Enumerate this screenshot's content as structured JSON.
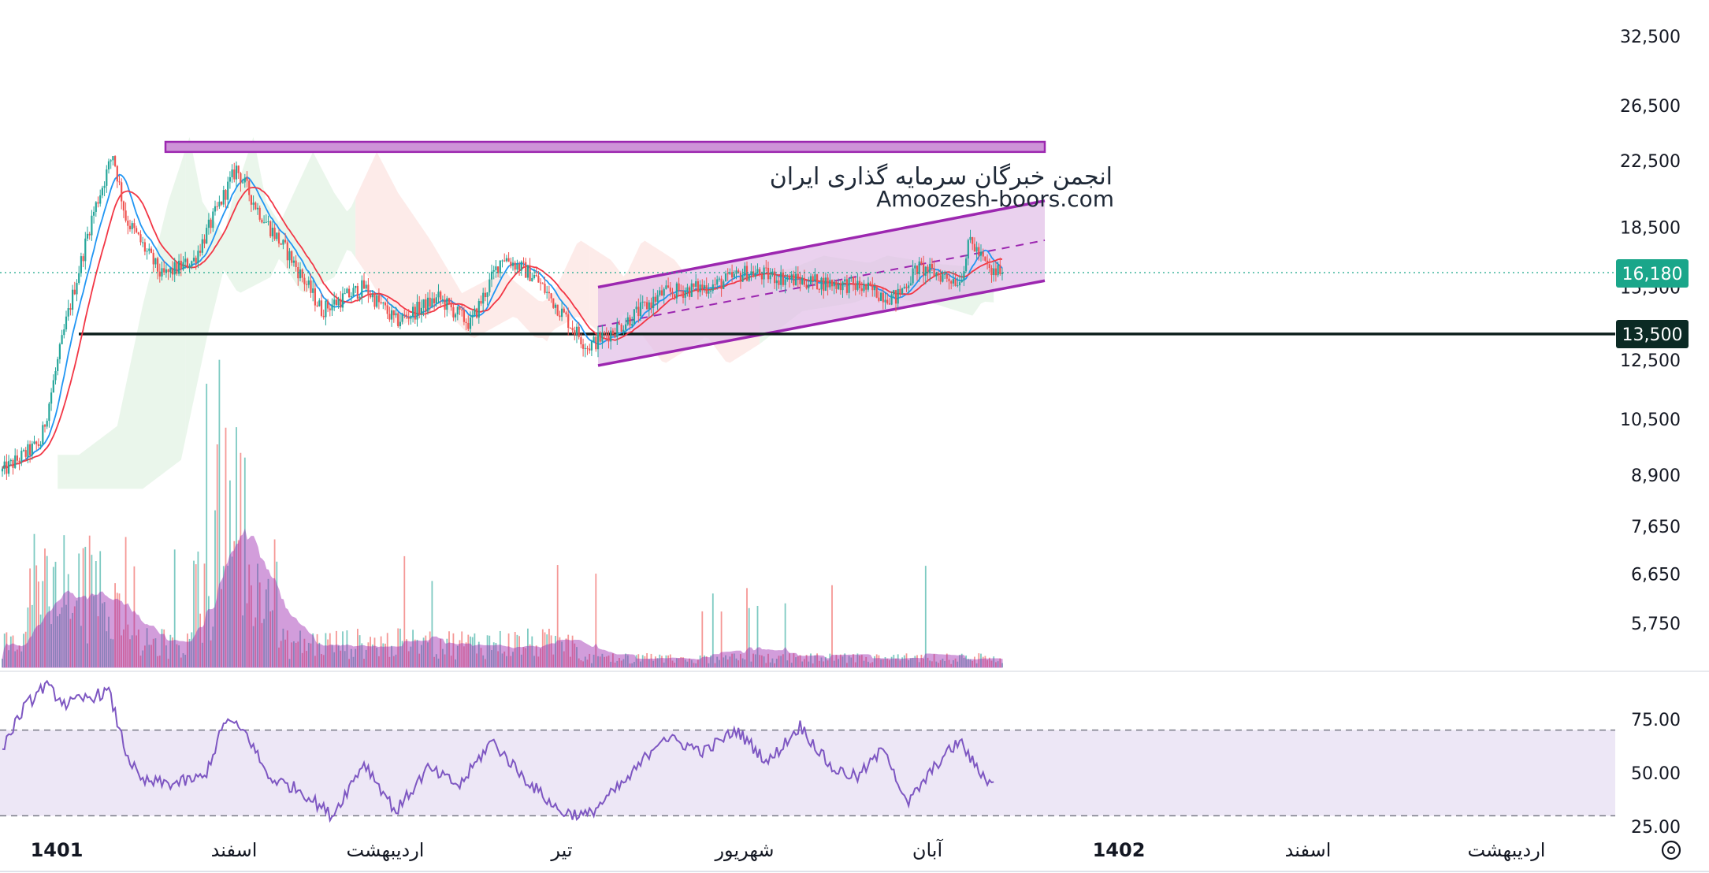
{
  "watermark": {
    "line1": "انجمن خبرگان سرمایه گذاری ایران",
    "line2": "Amoozesh-boors.com"
  },
  "colors": {
    "up": "#26a69a",
    "down": "#ef5350",
    "ma_fast": "#2196f3",
    "ma_slow": "#f23645",
    "channel": "#9c27b0",
    "channel_fill": "#e1bee7",
    "support": "#0d1f1c",
    "last_price_badge": "#1aa68a",
    "support_badge": "#0b2a24",
    "rsi": "#7e57c2",
    "rsi_band": "#ede7f6",
    "cloud_green": "#e8f5e9",
    "cloud_red": "#fde9e7"
  },
  "chart_data": [
    {
      "type": "candlestick",
      "price_axis": {
        "scale": "log",
        "ticks": [
          "32,500",
          "26,500",
          "22,500",
          "18,500",
          "15,500",
          "12,500",
          "10,500",
          "8,900",
          "7,650",
          "6,650",
          "5,750"
        ],
        "tick_values": [
          32500,
          26500,
          22500,
          18500,
          15500,
          12500,
          10500,
          8900,
          7650,
          6650,
          5750
        ]
      },
      "time_axis": {
        "labels": [
          "1401",
          "اسفند",
          "اردیبهشت",
          "تیر",
          "شهریور",
          "آبان",
          "1402",
          "اسفند",
          "اردیبهشت"
        ],
        "bold_labels": [
          "1401",
          "1402"
        ]
      },
      "last_price": {
        "value": 16180,
        "label": "16,180"
      },
      "support": {
        "value": 13500,
        "label": "13,500"
      },
      "resistance_zone": {
        "low": 23100,
        "high": 23800
      },
      "channel": {
        "upper": [
          {
            "bar": 280,
            "price": 15500
          },
          {
            "bar": 490,
            "price": 20000
          }
        ],
        "lower": [
          {
            "bar": 280,
            "price": 12300
          },
          {
            "bar": 490,
            "price": 15800
          }
        ],
        "mid": [
          {
            "bar": 280,
            "price": 13800
          },
          {
            "bar": 490,
            "price": 17800
          }
        ]
      },
      "price_path": [
        [
          0,
          9000
        ],
        [
          18,
          9800
        ],
        [
          30,
          14000
        ],
        [
          42,
          19000
        ],
        [
          52,
          23000
        ],
        [
          58,
          19000
        ],
        [
          75,
          16000
        ],
        [
          90,
          16800
        ],
        [
          110,
          22000
        ],
        [
          120,
          19500
        ],
        [
          135,
          17000
        ],
        [
          150,
          14500
        ],
        [
          170,
          15500
        ],
        [
          185,
          14000
        ],
        [
          205,
          15000
        ],
        [
          220,
          13900
        ],
        [
          235,
          17000
        ],
        [
          250,
          16000
        ],
        [
          262,
          14500
        ],
        [
          275,
          13000
        ],
        [
          290,
          13800
        ],
        [
          310,
          15200
        ],
        [
          335,
          15600
        ],
        [
          350,
          16200
        ],
        [
          375,
          15800
        ],
        [
          400,
          15600
        ],
        [
          420,
          15000
        ],
        [
          430,
          16400
        ],
        [
          450,
          15800
        ],
        [
          455,
          17800
        ],
        [
          465,
          16100
        ],
        [
          470,
          16400
        ]
      ],
      "volume": {
        "note": "volume histogram with moving-average area"
      },
      "indicators": [
        "moving averages",
        "ichimoku cloud",
        "volume"
      ]
    },
    {
      "type": "line",
      "name": "RSI",
      "ticks": [
        "75.00",
        "50.00",
        "25.00"
      ],
      "tick_values": [
        75,
        50,
        25
      ],
      "band": [
        30,
        70
      ],
      "path": [
        [
          0,
          62
        ],
        [
          10,
          80
        ],
        [
          20,
          91
        ],
        [
          30,
          82
        ],
        [
          40,
          85
        ],
        [
          50,
          88
        ],
        [
          58,
          60
        ],
        [
          65,
          46
        ],
        [
          80,
          45
        ],
        [
          95,
          48
        ],
        [
          105,
          75
        ],
        [
          115,
          68
        ],
        [
          125,
          48
        ],
        [
          140,
          42
        ],
        [
          155,
          30
        ],
        [
          170,
          55
        ],
        [
          185,
          32
        ],
        [
          200,
          52
        ],
        [
          215,
          44
        ],
        [
          230,
          65
        ],
        [
          245,
          48
        ],
        [
          262,
          32
        ],
        [
          275,
          30
        ],
        [
          295,
          48
        ],
        [
          310,
          67
        ],
        [
          330,
          60
        ],
        [
          345,
          70
        ],
        [
          360,
          55
        ],
        [
          375,
          72
        ],
        [
          390,
          52
        ],
        [
          402,
          48
        ],
        [
          415,
          62
        ],
        [
          425,
          35
        ],
        [
          440,
          55
        ],
        [
          450,
          65
        ],
        [
          458,
          52
        ],
        [
          466,
          44
        ]
      ]
    }
  ]
}
